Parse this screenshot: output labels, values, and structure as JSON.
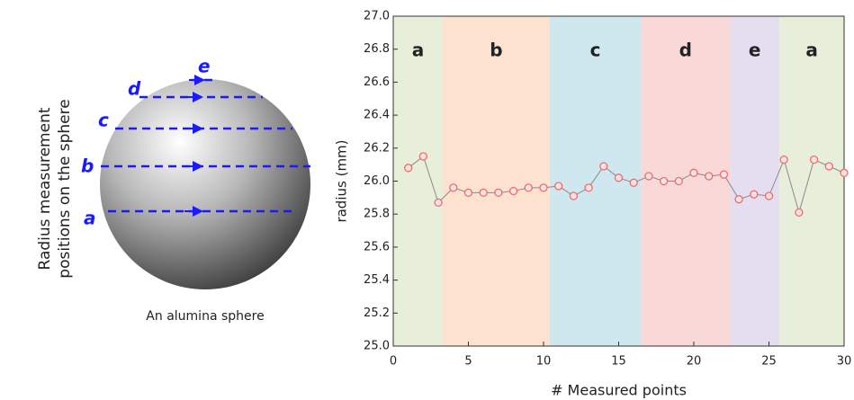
{
  "chart_data": {
    "type": "scatter-line",
    "xlabel": "# Measured points",
    "ylabel": "radius (mm)",
    "x": [
      1,
      2,
      3,
      4,
      5,
      6,
      7,
      8,
      9,
      10,
      11,
      12,
      13,
      14,
      15,
      16,
      17,
      18,
      19,
      20,
      21,
      22,
      23,
      24,
      25,
      26,
      27,
      28,
      29,
      30
    ],
    "values": [
      26.08,
      26.15,
      25.87,
      25.96,
      25.93,
      25.93,
      25.93,
      25.94,
      25.96,
      25.96,
      25.97,
      25.91,
      25.96,
      26.09,
      26.02,
      25.99,
      26.03,
      26.0,
      26.0,
      26.05,
      26.03,
      26.04,
      25.89,
      25.92,
      25.91,
      26.13,
      25.81,
      26.13,
      26.09,
      26.05
    ],
    "color": "#f06a6a",
    "xlim": [
      0,
      30
    ],
    "xticks": [
      0,
      5,
      10,
      15,
      20,
      25,
      30
    ],
    "ylim": [
      25,
      27
    ],
    "yticks": [
      {
        "value": 25,
        "label": "25.0"
      },
      {
        "value": 25.2,
        "label": "25.2"
      },
      {
        "value": 25.4,
        "label": "25.4"
      },
      {
        "value": 25.6,
        "label": "25.6"
      },
      {
        "value": 25.8,
        "label": "25.8"
      },
      {
        "value": 26,
        "label": "26.0"
      },
      {
        "value": 26.2,
        "label": "26.2"
      },
      {
        "value": 26.4,
        "label": "26.4"
      },
      {
        "value": 26.6,
        "label": "26.6"
      },
      {
        "value": 26.8,
        "label": "26.8"
      },
      {
        "value": 27,
        "label": "27.0"
      }
    ],
    "regions": [
      {
        "label": "a",
        "start": 0,
        "end": 3.3,
        "color": "#e7eed9"
      },
      {
        "label": "b",
        "start": 3.3,
        "end": 10.4,
        "color": "#fde2cf"
      },
      {
        "label": "c",
        "start": 10.4,
        "end": 16.5,
        "color": "#cfe8f0"
      },
      {
        "label": "d",
        "start": 16.5,
        "end": 22.4,
        "color": "#f9d8d8"
      },
      {
        "label": "e",
        "start": 22.4,
        "end": 25.7,
        "color": "#e5def0"
      },
      {
        "label": "a",
        "start": 25.7,
        "end": 30,
        "color": "#e7eed9"
      }
    ]
  },
  "diagram": {
    "side_label": [
      "Radius measurement",
      "positions on the sphere"
    ],
    "caption": "An alumina sphere",
    "levels": [
      "a",
      "b",
      "c",
      "d",
      "e"
    ]
  }
}
